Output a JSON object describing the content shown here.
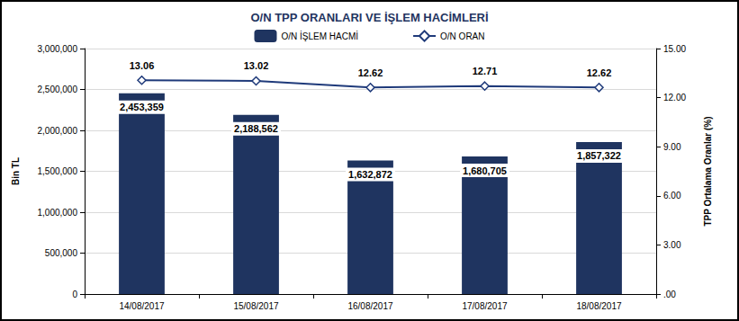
{
  "chart_data": {
    "type": "bar",
    "title": "O/N TPP ORANLARI VE İŞLEM HACİMLERİ",
    "categories": [
      "14/08/2017",
      "15/08/2017",
      "16/08/2017",
      "17/08/2017",
      "18/08/2017"
    ],
    "series": [
      {
        "name": "O/N İŞLEM HACMİ",
        "type": "bar",
        "color": "#1f3460",
        "values": [
          2453359,
          2188562,
          1632872,
          1680705,
          1857322
        ],
        "value_labels": [
          "2,453,359",
          "2,188,562",
          "1,632,872",
          "1,680,705",
          "1,857,322"
        ]
      },
      {
        "name": "O/N ORAN",
        "type": "line",
        "axis": "y2",
        "color": "#1f3a7a",
        "marker": "diamond",
        "values": [
          13.06,
          13.02,
          12.62,
          12.71,
          12.62
        ]
      }
    ],
    "y_label": "Bin TL",
    "y2_label": "TPP Ortalama Oranlar (%)",
    "ylim": [
      0,
      3000000
    ],
    "yticks": [
      0,
      {
        "value": 500000,
        "label": "500,000"
      },
      {
        "value": 1000000,
        "label": "1,000,000"
      },
      {
        "value": 1500000,
        "label": "1,500,000"
      },
      {
        "value": 2000000,
        "label": "2,000,000"
      },
      {
        "value": 2500000,
        "label": "2,500,000"
      },
      {
        "value": 3000000,
        "label": "3,000,000"
      }
    ],
    "y2lim": [
      0,
      15
    ],
    "y2ticks": [
      {
        "value": 0,
        "label": ".00"
      },
      {
        "value": 3,
        "label": "3.00"
      },
      {
        "value": 6,
        "label": "6.00"
      },
      {
        "value": 9,
        "label": "9.00"
      },
      {
        "value": 12,
        "label": "12.00"
      },
      {
        "value": 15,
        "label": "15.00"
      }
    ],
    "data_labels": true,
    "legend": "top",
    "grid": true
  }
}
